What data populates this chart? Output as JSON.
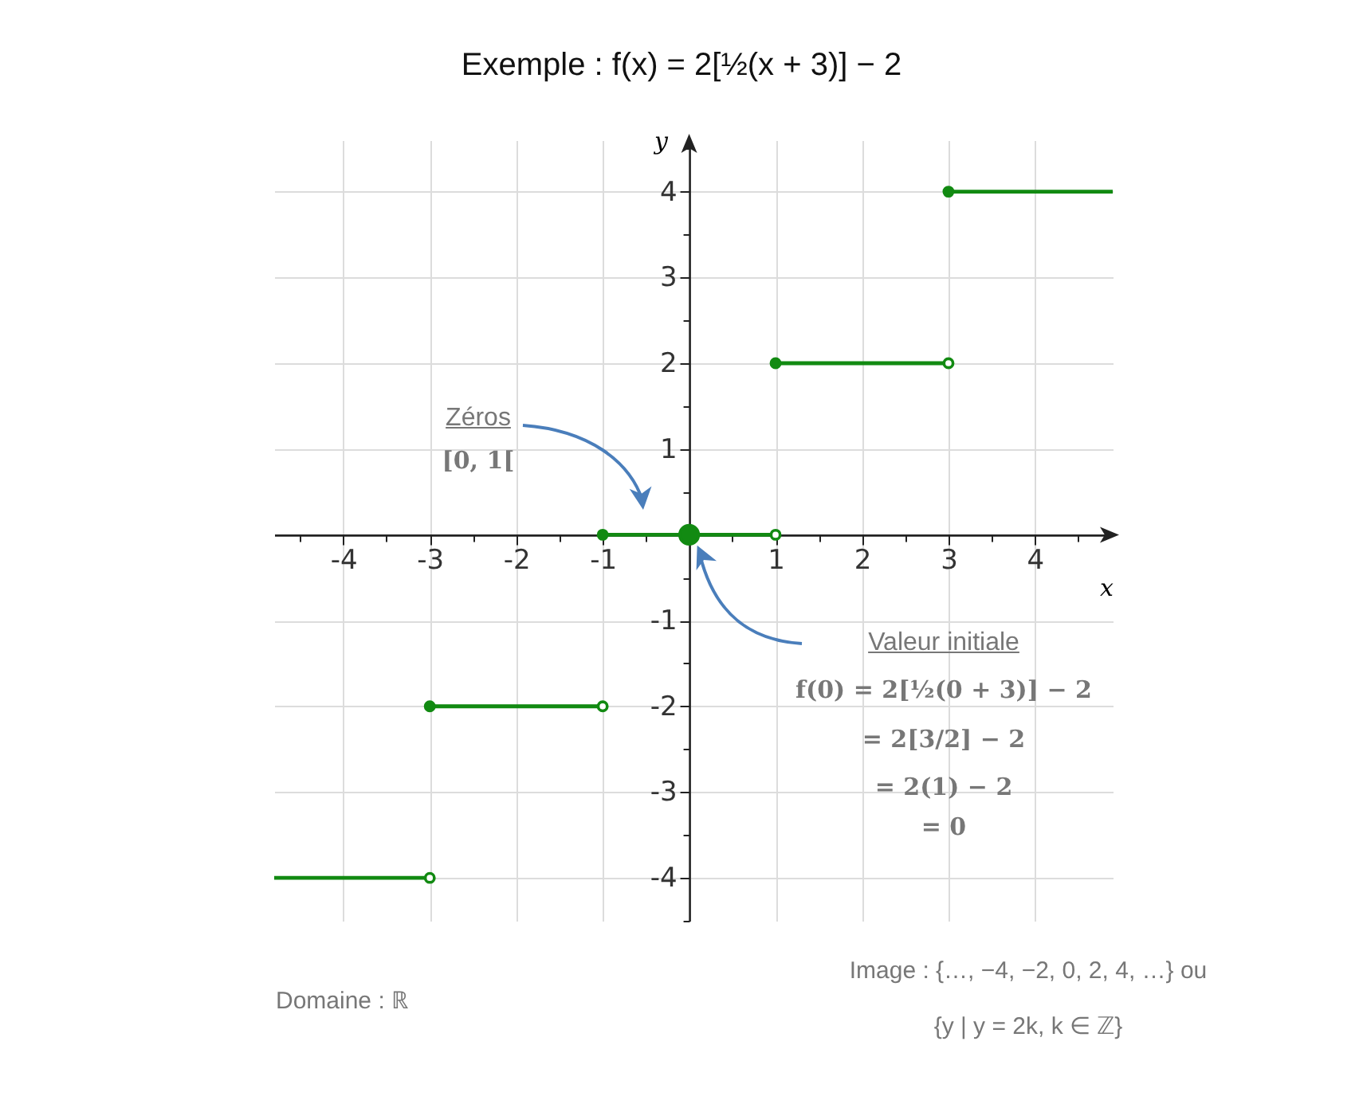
{
  "chart_data": {
    "type": "line",
    "title": "Exemple : f(x) = 2[½(x + 3)] − 2",
    "xlabel": "x",
    "ylabel": "y",
    "xlim": [
      -4.8,
      4.9
    ],
    "ylim": [
      -4.5,
      4.6
    ],
    "xticks": [
      {
        "value": -4.5,
        "label": null
      },
      -4,
      {
        "value": -3.5,
        "label": null
      },
      -3,
      {
        "value": -2.5,
        "label": null
      },
      -2,
      {
        "value": -1.5,
        "label": null
      },
      -1,
      {
        "value": -0.5,
        "label": null
      },
      {
        "value": 0.5,
        "label": null
      },
      1,
      {
        "value": 1.5,
        "label": null
      },
      2,
      {
        "value": 2.5,
        "label": null
      },
      3,
      {
        "value": 3.5,
        "label": null
      },
      4,
      {
        "value": 4.5,
        "label": null
      }
    ],
    "yticks": [
      {
        "value": -4.5,
        "label": null
      },
      -4,
      {
        "value": -3.5,
        "label": null
      },
      -3,
      {
        "value": -2.5,
        "label": null
      },
      -2,
      {
        "value": -1.5,
        "label": null
      },
      -1,
      {
        "value": -0.5,
        "label": null
      },
      {
        "value": 0.5,
        "label": null
      },
      1,
      {
        "value": 1.5,
        "label": null
      },
      2,
      {
        "value": 2.5,
        "label": null
      },
      3,
      {
        "value": 3.5,
        "label": null
      },
      4,
      {
        "value": 4.5,
        "label": null
      }
    ],
    "grid": true,
    "series": [
      {
        "type": "line",
        "color": "#128a12",
        "x": [
          -4.8,
          -3
        ],
        "values": [
          -4,
          -4
        ]
      },
      {
        "type": "line",
        "color": "#128a12",
        "x": [
          -3,
          -1
        ],
        "values": [
          -2,
          -2
        ]
      },
      {
        "type": "line",
        "color": "#128a12",
        "x": [
          -1,
          1
        ],
        "values": [
          0,
          0
        ]
      },
      {
        "type": "line",
        "color": "#128a12",
        "x": [
          1,
          3
        ],
        "values": [
          2,
          2
        ]
      },
      {
        "type": "line",
        "color": "#128a12",
        "x": [
          3,
          4.9
        ],
        "values": [
          4,
          4
        ]
      },
      {
        "type": "scatter",
        "color": "#128a12",
        "marker": "circle",
        "x": [
          -3,
          -1,
          1,
          3
        ],
        "values": [
          -2,
          0,
          2,
          4
        ]
      },
      {
        "type": "scatter",
        "color": "#128a12",
        "colors": [
          "#ffffff",
          "#ffffff",
          "#ffffff",
          "#ffffff"
        ],
        "marker": "circle",
        "x": [
          -3,
          -1,
          1,
          3
        ],
        "values": [
          -4,
          -2,
          0,
          2
        ]
      },
      {
        "type": "scatter",
        "color": "#128a12",
        "marker": "circle",
        "sizes": [
          1
        ],
        "x": [
          0
        ],
        "values": [
          0
        ]
      }
    ],
    "annotations": [
      "Zéros",
      "[0, 1[",
      "Valeur initiale",
      "f(0) = 2[½(0 + 3)] − 2",
      "= 2[3/2] − 2",
      "= 2(1) − 2",
      "= 0",
      "Domaine : ℝ",
      "Image : {…, −4, −2, 0, 2, 4, …} ou",
      "{y | y = 2k, k ∈ ℤ}"
    ]
  }
}
